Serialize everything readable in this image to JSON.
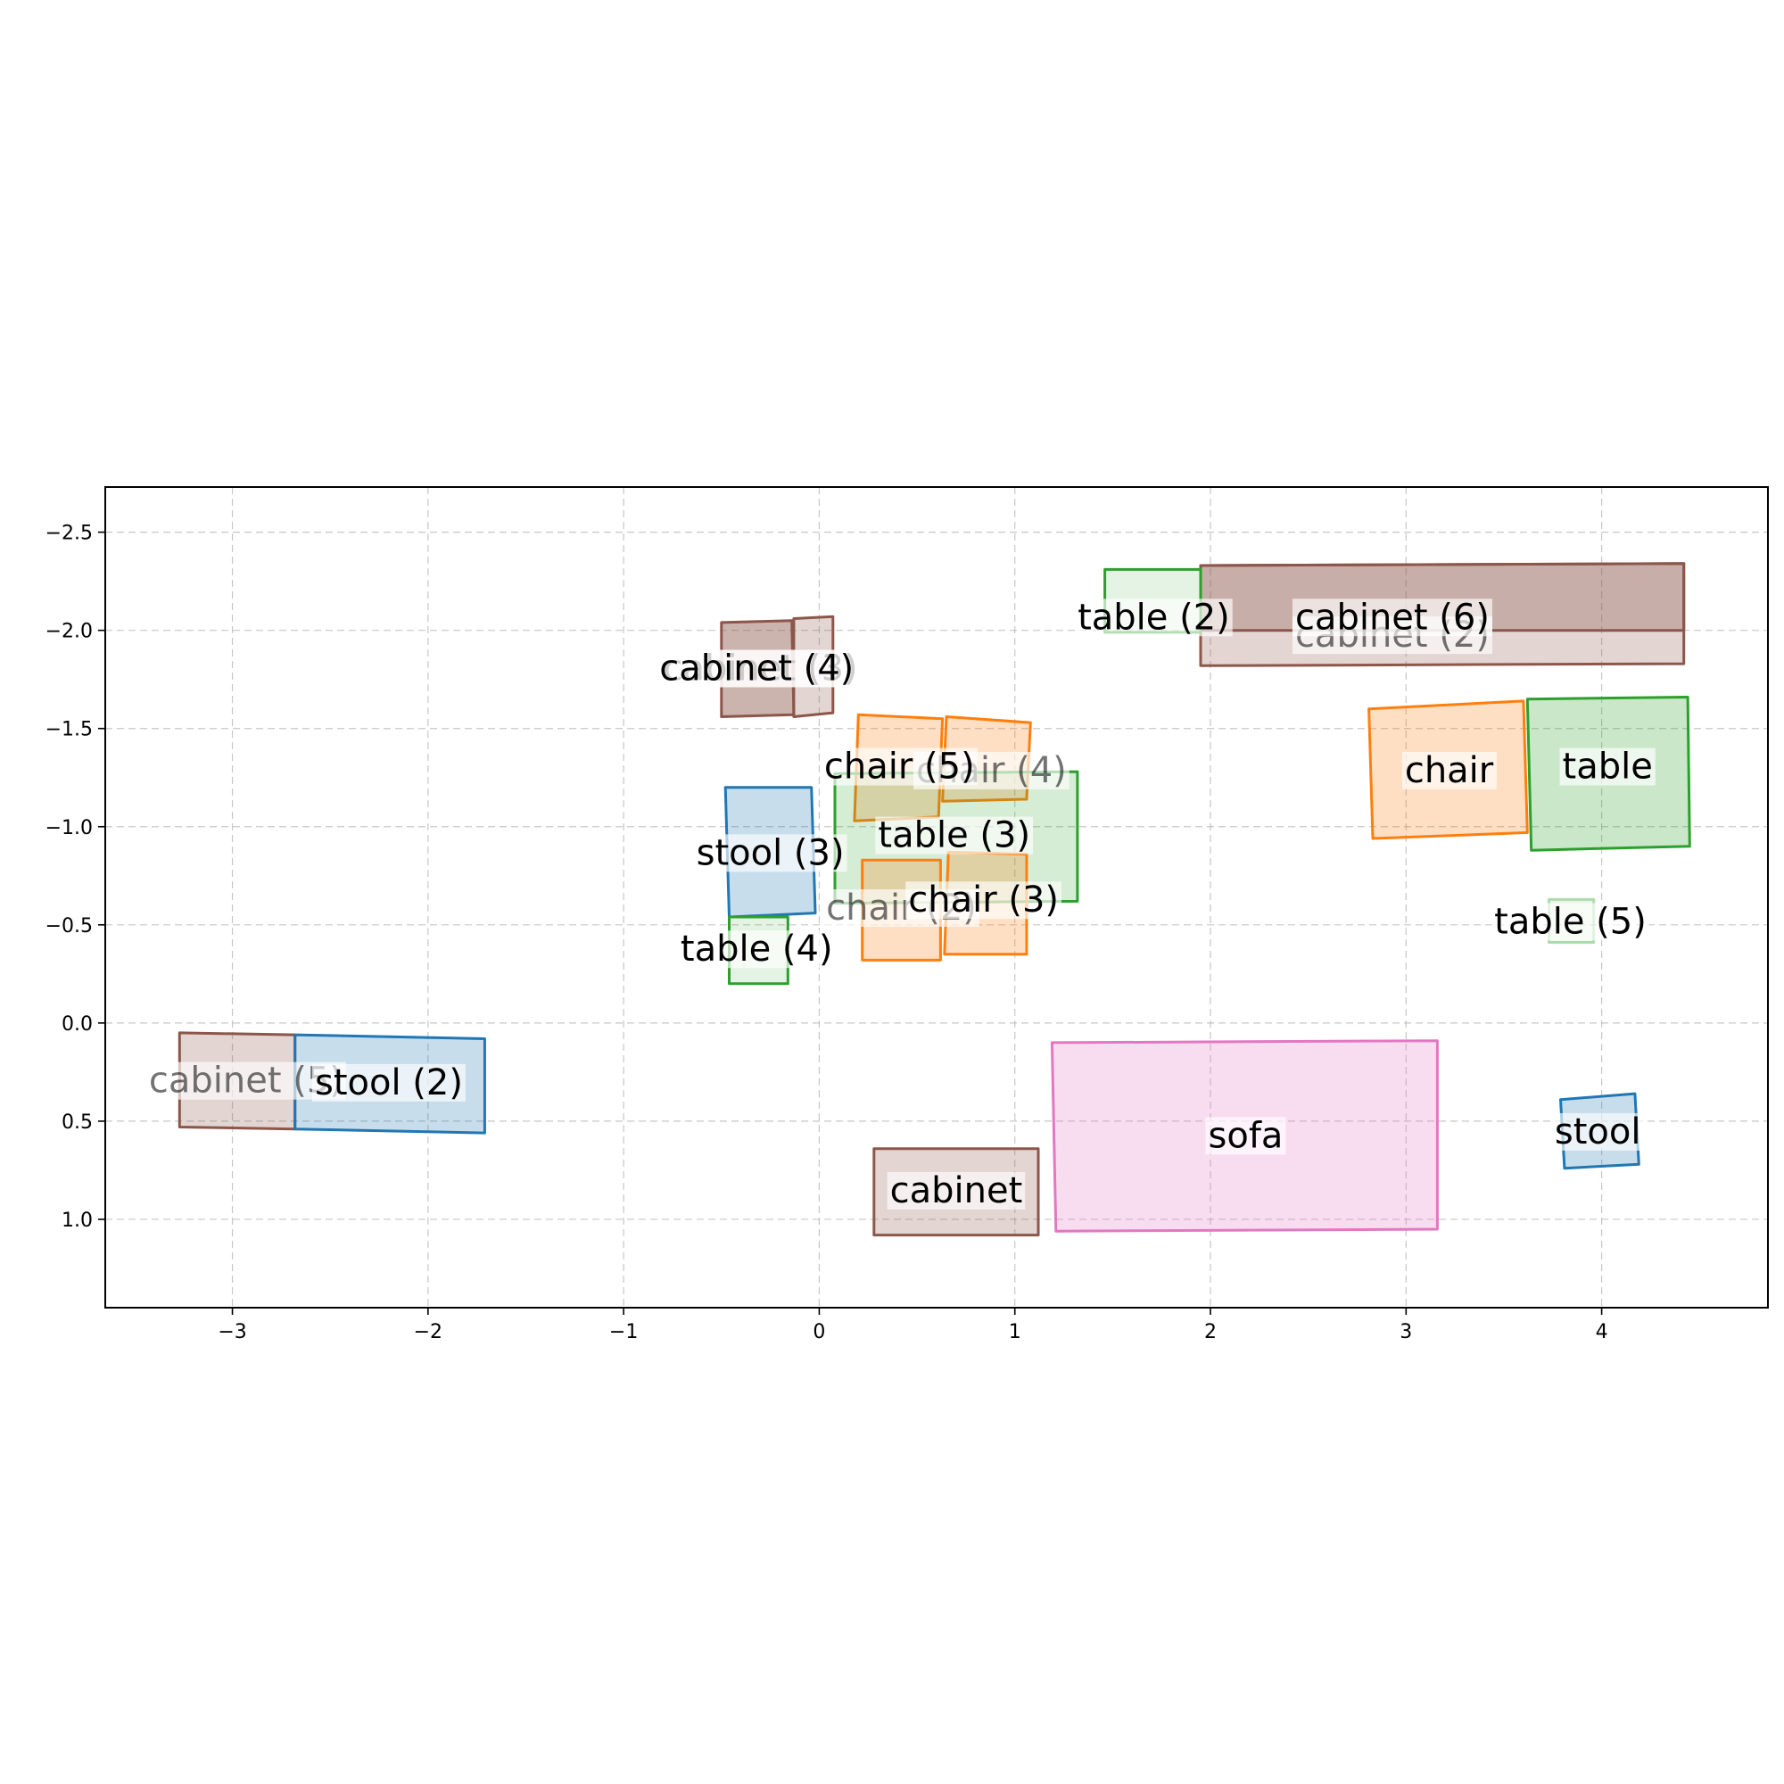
{
  "chart_data": {
    "type": "scatter",
    "title": "",
    "xlabel": "",
    "ylabel": "",
    "xlim": [
      -3.65,
      4.85
    ],
    "ylim": [
      1.45,
      -2.73
    ],
    "y_inverted": true,
    "grid": true,
    "x_ticks": [
      -3,
      -2,
      -1,
      0,
      1,
      2,
      3,
      4
    ],
    "y_ticks": [
      -2.5,
      -2.0,
      -1.5,
      -1.0,
      -0.5,
      0.0,
      0.5,
      1.0
    ],
    "x_tick_labels": [
      "−3",
      "−2",
      "−1",
      "0",
      "1",
      "2",
      "3",
      "4"
    ],
    "y_tick_labels": [
      "−2.5",
      "−2.0",
      "−1.5",
      "−1.0",
      "−0.5",
      "0.0",
      "0.5",
      "1.0"
    ],
    "colors": {
      "chair": "#ff7f0e",
      "table": "#2ca02c",
      "stool": "#1f77b4",
      "cabinet": "#8c564b",
      "sofa": "#e377c2"
    },
    "objects": [
      {
        "label": "cabinet (2)",
        "category": "cabinet",
        "poly": [
          [
            1.95,
            -2.33
          ],
          [
            4.42,
            -2.34
          ],
          [
            4.42,
            -1.83
          ],
          [
            1.95,
            -1.82
          ]
        ],
        "text_at": [
          2.93,
          -1.98
        ],
        "alpha": 0.25,
        "label_alpha": 0.55
      },
      {
        "label": "cabinet (6)",
        "category": "cabinet",
        "poly": [
          [
            1.95,
            -2.33
          ],
          [
            4.42,
            -2.34
          ],
          [
            4.42,
            -2.0
          ],
          [
            1.95,
            -2.0
          ]
        ],
        "text_at": [
          2.93,
          -2.07
        ],
        "alpha": 0.3
      },
      {
        "label": "table (2)",
        "category": "table",
        "poly": [
          [
            1.46,
            -2.31
          ],
          [
            1.95,
            -2.31
          ],
          [
            1.95,
            -1.99
          ],
          [
            1.46,
            -1.99
          ]
        ],
        "text_at": [
          1.71,
          -2.07
        ],
        "alpha": 0.12
      },
      {
        "label": "cabinet (3)",
        "category": "cabinet",
        "poly": [
          [
            -0.13,
            -2.06
          ],
          [
            0.07,
            -2.07
          ],
          [
            0.07,
            -1.58
          ],
          [
            -0.13,
            -1.56
          ]
        ],
        "text_at": [
          -0.3,
          -1.81
        ],
        "alpha": 0.25,
        "label_alpha": 0.55
      },
      {
        "label": "cabinet (4)",
        "category": "cabinet",
        "poly": [
          [
            -0.5,
            -2.04
          ],
          [
            -0.14,
            -2.05
          ],
          [
            -0.13,
            -1.57
          ],
          [
            -0.5,
            -1.56
          ]
        ],
        "text_at": [
          -0.32,
          -1.81
        ],
        "alpha": 0.45
      },
      {
        "label": "chair (4)",
        "category": "chair",
        "poly": [
          [
            0.65,
            -1.56
          ],
          [
            1.08,
            -1.53
          ],
          [
            1.06,
            -1.14
          ],
          [
            0.63,
            -1.13
          ]
        ],
        "text_at": [
          0.88,
          -1.29
        ],
        "alpha": 0.25,
        "label_alpha": 0.55
      },
      {
        "label": "chair (5)",
        "category": "chair",
        "poly": [
          [
            0.2,
            -1.57
          ],
          [
            0.63,
            -1.55
          ],
          [
            0.61,
            -1.05
          ],
          [
            0.18,
            -1.03
          ]
        ],
        "text_at": [
          0.41,
          -1.31
        ],
        "alpha": 0.25
      },
      {
        "label": "table (3)",
        "category": "table",
        "poly": [
          [
            0.08,
            -1.27
          ],
          [
            1.32,
            -1.28
          ],
          [
            1.32,
            -0.62
          ],
          [
            0.08,
            -0.61
          ]
        ],
        "text_at": [
          0.69,
          -0.96
        ],
        "alpha": 0.2
      },
      {
        "label": "chair (2)",
        "category": "chair",
        "poly": [
          [
            0.22,
            -0.83
          ],
          [
            0.62,
            -0.83
          ],
          [
            0.62,
            -0.32
          ],
          [
            0.22,
            -0.32
          ]
        ],
        "text_at": [
          0.42,
          -0.59
        ],
        "alpha": 0.25,
        "label_alpha": 0.55
      },
      {
        "label": "chair (3)",
        "category": "chair",
        "poly": [
          [
            0.66,
            -0.87
          ],
          [
            1.06,
            -0.86
          ],
          [
            1.06,
            -0.35
          ],
          [
            0.64,
            -0.35
          ]
        ],
        "text_at": [
          0.84,
          -0.63
        ],
        "alpha": 0.25
      },
      {
        "label": "stool (3)",
        "category": "stool",
        "poly": [
          [
            -0.48,
            -1.2
          ],
          [
            -0.04,
            -1.2
          ],
          [
            -0.02,
            -0.56
          ],
          [
            -0.46,
            -0.54
          ]
        ],
        "text_at": [
          -0.25,
          -0.87
        ],
        "alpha": 0.25
      },
      {
        "label": "table (4)",
        "category": "table",
        "poly": [
          [
            -0.46,
            -0.54
          ],
          [
            -0.16,
            -0.54
          ],
          [
            -0.16,
            -0.2
          ],
          [
            -0.46,
            -0.2
          ]
        ],
        "text_at": [
          -0.32,
          -0.38
        ],
        "alpha": 0.12
      },
      {
        "label": "chair",
        "category": "chair",
        "poly": [
          [
            2.81,
            -1.6
          ],
          [
            3.6,
            -1.64
          ],
          [
            3.62,
            -0.97
          ],
          [
            2.83,
            -0.94
          ]
        ],
        "text_at": [
          3.22,
          -1.29
        ],
        "alpha": 0.25
      },
      {
        "label": "table",
        "category": "table",
        "poly": [
          [
            3.62,
            -1.65
          ],
          [
            4.44,
            -1.66
          ],
          [
            4.45,
            -0.9
          ],
          [
            3.64,
            -0.88
          ]
        ],
        "text_at": [
          4.03,
          -1.31
        ],
        "alpha": 0.25
      },
      {
        "label": "table (5)",
        "category": "table",
        "poly": [
          [
            3.73,
            -0.63
          ],
          [
            3.96,
            -0.63
          ],
          [
            3.96,
            -0.41
          ],
          [
            3.73,
            -0.41
          ]
        ],
        "text_at": [
          3.84,
          -0.52
        ],
        "alpha": 0.1,
        "stroke_alpha": 0.35
      },
      {
        "label": "cabinet (5)",
        "category": "cabinet",
        "poly": [
          [
            -3.27,
            0.05
          ],
          [
            -2.68,
            0.06
          ],
          [
            -2.68,
            0.54
          ],
          [
            -3.27,
            0.53
          ]
        ],
        "text_at": [
          -2.93,
          0.29
        ],
        "alpha": 0.25,
        "label_alpha": 0.55
      },
      {
        "label": "stool (2)",
        "category": "stool",
        "poly": [
          [
            -2.68,
            0.06
          ],
          [
            -1.71,
            0.08
          ],
          [
            -1.71,
            0.56
          ],
          [
            -2.68,
            0.54
          ]
        ],
        "text_at": [
          -2.2,
          0.3
        ],
        "alpha": 0.25
      },
      {
        "label": "sofa",
        "category": "sofa",
        "poly": [
          [
            1.19,
            0.1
          ],
          [
            3.16,
            0.09
          ],
          [
            3.16,
            1.05
          ],
          [
            1.21,
            1.06
          ]
        ],
        "text_at": [
          2.18,
          0.57
        ],
        "alpha": 0.25
      },
      {
        "label": "cabinet",
        "category": "cabinet",
        "poly": [
          [
            0.28,
            0.64
          ],
          [
            1.12,
            0.64
          ],
          [
            1.12,
            1.08
          ],
          [
            0.28,
            1.08
          ]
        ],
        "text_at": [
          0.7,
          0.85
        ],
        "alpha": 0.25
      },
      {
        "label": "stool",
        "category": "stool",
        "poly": [
          [
            3.79,
            0.39
          ],
          [
            4.17,
            0.36
          ],
          [
            4.19,
            0.72
          ],
          [
            3.81,
            0.74
          ]
        ],
        "text_at": [
          3.98,
          0.55
        ],
        "alpha": 0.25
      }
    ]
  }
}
